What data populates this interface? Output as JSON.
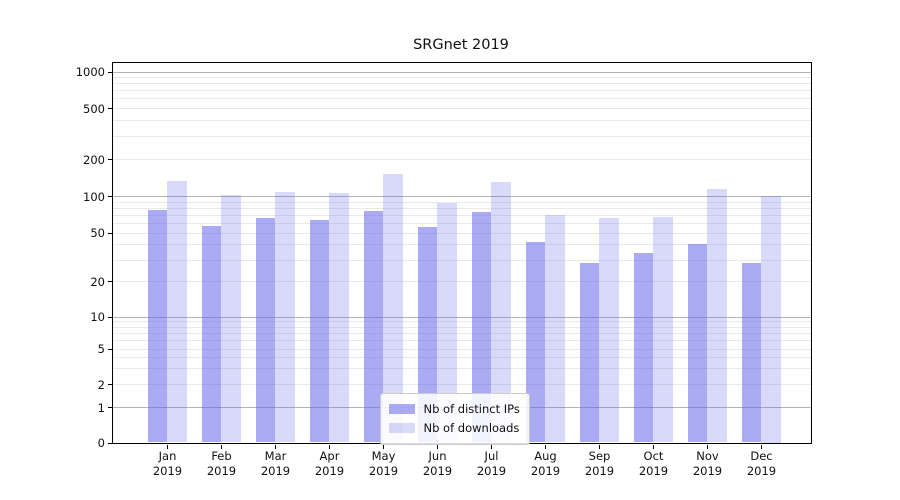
{
  "chart_data": {
    "type": "bar",
    "title": "SRGnet 2019",
    "xlabel": "",
    "ylabel": "",
    "yscale": "symlog",
    "grid": true,
    "legend_position": "lower center",
    "categories": [
      "Jan",
      "Feb",
      "Mar",
      "Apr",
      "May",
      "Jun",
      "Jul",
      "Aug",
      "Sep",
      "Oct",
      "Nov",
      "Dec"
    ],
    "x_year": "2019",
    "yticks": [
      1000,
      500,
      200,
      100,
      50,
      20,
      10,
      5,
      2,
      1,
      0
    ],
    "ylim": [
      0,
      1200
    ],
    "series": [
      {
        "name": "Nb of distinct IPs",
        "color": "#6666EB",
        "alpha": 0.55,
        "rendered_color": "#aaaaf0",
        "values": [
          76,
          57,
          66,
          63,
          75,
          56,
          74,
          42,
          28,
          34,
          40,
          28
        ]
      },
      {
        "name": "Nb of downloads",
        "color": "#6666EB",
        "alpha": 0.25,
        "rendered_color": "#d9d9f8",
        "values": [
          133,
          102,
          107,
          105,
          152,
          88,
          129,
          70,
          66,
          67,
          115,
          100
        ]
      }
    ],
    "minor_gridlines": [
      2,
      3,
      4,
      5,
      6,
      7,
      8,
      9,
      20,
      30,
      40,
      50,
      60,
      70,
      80,
      90,
      200,
      300,
      400,
      500,
      600,
      700,
      800,
      900
    ],
    "major_gridlines": [
      1,
      10,
      100,
      1000
    ]
  }
}
